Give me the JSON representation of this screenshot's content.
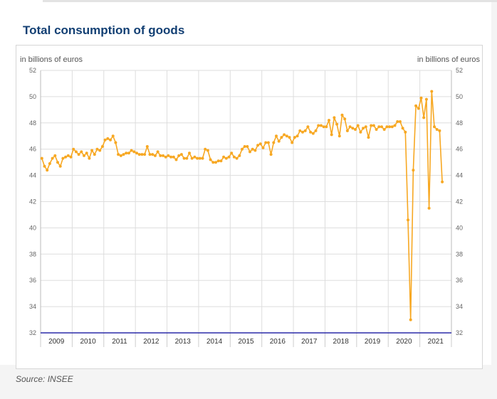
{
  "page": {
    "title": "Total consumption of goods",
    "source": "Source: INSEE"
  },
  "colors": {
    "title": "#123f73",
    "line": "#f7a823",
    "baseline": "#2a2aa8",
    "grid": "#dddddd",
    "text": "#555555"
  },
  "chart_data": {
    "type": "line",
    "unit_left": "in billions of euros",
    "unit_right": "in billions of euros",
    "ylim": [
      32,
      52
    ],
    "yticks": [
      32,
      34,
      36,
      38,
      40,
      42,
      44,
      46,
      48,
      50,
      52
    ],
    "x_categories": [
      "2009",
      "2010",
      "2011",
      "2012",
      "2013",
      "2014",
      "2015",
      "2016",
      "2017",
      "2018",
      "2019",
      "2020",
      "2021"
    ],
    "grid": true,
    "legend": "none",
    "series": [
      {
        "frequency": "monthly",
        "start": "2009-01",
        "values": [
          45.3,
          44.7,
          44.4,
          44.9,
          45.3,
          45.5,
          45.0,
          44.7,
          45.3,
          45.4,
          45.5,
          45.4,
          46.0,
          45.8,
          45.6,
          45.8,
          45.5,
          45.7,
          45.3,
          45.9,
          45.6,
          46.0,
          45.9,
          46.2,
          46.7,
          46.8,
          46.7,
          47.0,
          46.5,
          45.6,
          45.5,
          45.6,
          45.7,
          45.7,
          45.9,
          45.8,
          45.7,
          45.6,
          45.6,
          45.6,
          46.2,
          45.6,
          45.6,
          45.5,
          45.8,
          45.5,
          45.5,
          45.4,
          45.5,
          45.4,
          45.4,
          45.2,
          45.5,
          45.6,
          45.3,
          45.3,
          45.7,
          45.3,
          45.4,
          45.3,
          45.3,
          45.3,
          46.0,
          45.9,
          45.2,
          45.0,
          45.0,
          45.1,
          45.1,
          45.4,
          45.3,
          45.4,
          45.7,
          45.4,
          45.3,
          45.5,
          46.0,
          46.2,
          46.2,
          45.8,
          46.0,
          45.9,
          46.3,
          46.4,
          46.1,
          46.5,
          46.5,
          45.6,
          46.5,
          47.0,
          46.6,
          46.9,
          47.1,
          47.0,
          46.9,
          46.5,
          46.9,
          47.0,
          47.4,
          47.3,
          47.4,
          47.7,
          47.3,
          47.2,
          47.4,
          47.8,
          47.8,
          47.7,
          47.7,
          48.2,
          47.1,
          48.4,
          47.9,
          47.0,
          48.6,
          48.3,
          47.4,
          47.7,
          47.6,
          47.5,
          47.8,
          47.3,
          47.6,
          47.7,
          46.9,
          47.8,
          47.8,
          47.5,
          47.7,
          47.7,
          47.5,
          47.7,
          47.7,
          47.7,
          47.8,
          48.1,
          48.1,
          47.6,
          47.3,
          40.6,
          33.0,
          44.4,
          49.3,
          49.1,
          49.9,
          48.4,
          49.8,
          41.5,
          50.4,
          47.7,
          47.5,
          47.4,
          43.5
        ]
      }
    ]
  }
}
